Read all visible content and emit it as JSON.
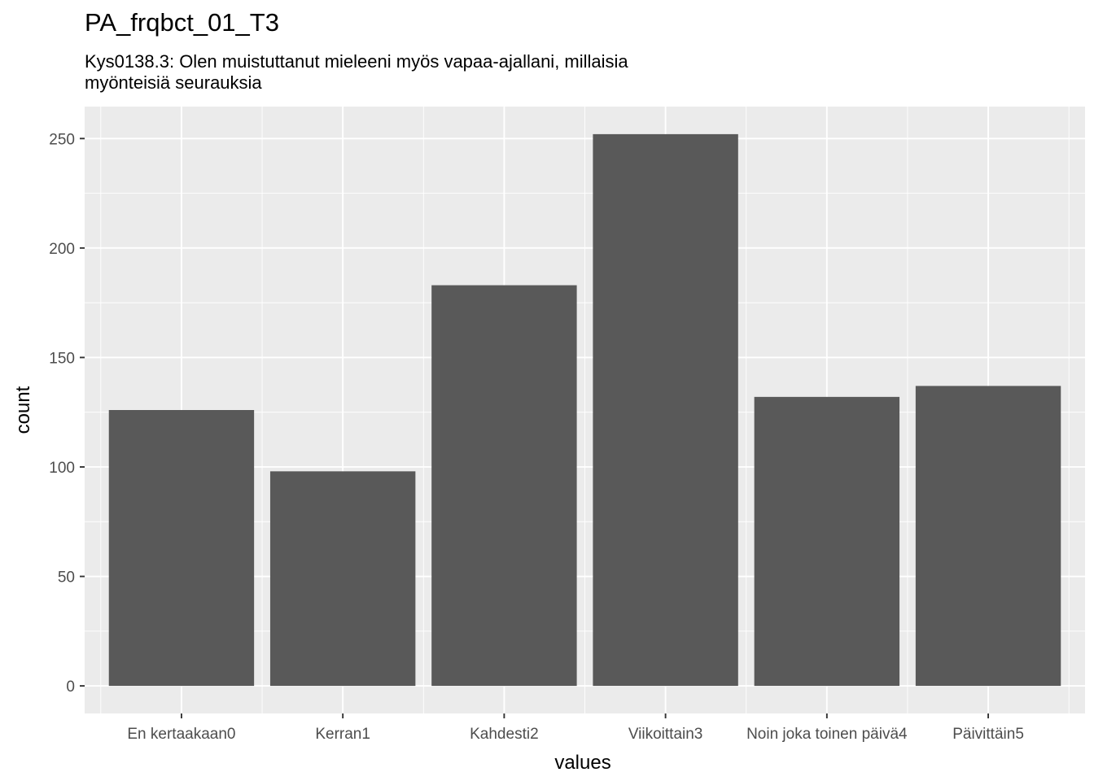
{
  "chart_data": {
    "type": "bar",
    "title": "PA_frqbct_01_T3",
    "subtitle_lines": [
      "Kys0138.3: Olen muistuttanut mieleeni myös vapaa-ajallani, millaisia",
      "myönteisiä seurauksia"
    ],
    "xlabel": "values",
    "ylabel": "count",
    "categories": [
      "En kertaakaan0",
      "Kerran1",
      "Kahdesti2",
      "Viikoittain3",
      "Noin joka toinen päivä4",
      "Päivittäin5"
    ],
    "values": [
      126,
      98,
      183,
      252,
      132,
      137
    ],
    "ylim": [
      -12.6,
      264.6
    ],
    "yticks": [
      0,
      50,
      100,
      150,
      200,
      250
    ],
    "grid": true,
    "legend": "none",
    "colors": {
      "bar": "#595959",
      "panel": "#ebebeb",
      "grid_major": "#ffffff",
      "grid_minor": "#f5f5f5"
    }
  }
}
